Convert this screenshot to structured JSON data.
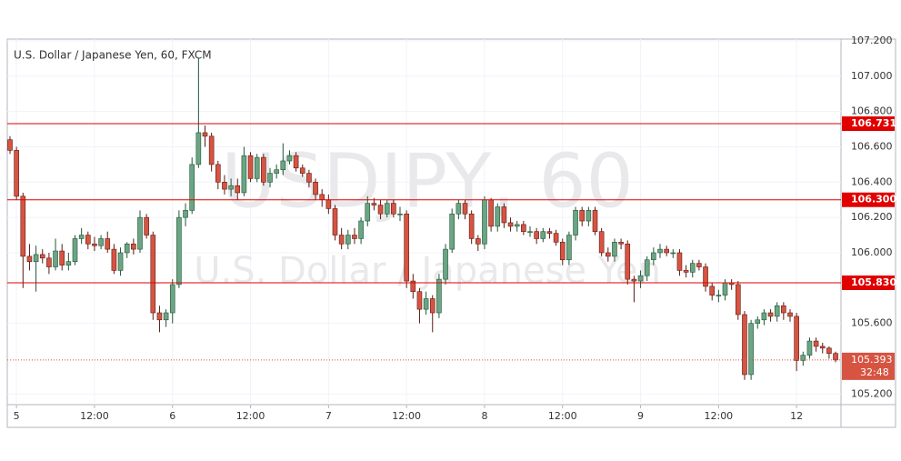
{
  "chart_data": {
    "type": "candlestick",
    "title": "U.S. Dollar / Japanese Yen, 60, FXCM",
    "watermark": [
      "USDJPY, 60",
      "U.S. Dollar / Japanese Yen"
    ],
    "categories": [
      null,
      "5",
      null,
      null,
      null,
      null,
      null,
      null,
      null,
      null,
      null,
      null,
      null,
      "12:00",
      null,
      null,
      null,
      null,
      null,
      null,
      null,
      null,
      null,
      null,
      null,
      "6",
      null,
      null,
      null,
      null,
      null,
      null,
      null,
      null,
      null,
      null,
      null,
      "12:00",
      null,
      null,
      null,
      null,
      null,
      null,
      null,
      null,
      null,
      null,
      null,
      "7",
      null,
      null,
      null,
      null,
      null,
      null,
      null,
      null,
      null,
      null,
      null,
      "12:00",
      null,
      null,
      null,
      null,
      null,
      null,
      null,
      null,
      null,
      null,
      null,
      "8",
      null,
      null,
      null,
      null,
      null,
      null,
      null,
      null,
      null,
      null,
      null,
      "12:00",
      null,
      null,
      null,
      null,
      null,
      null,
      null,
      null,
      null,
      null,
      null,
      "9",
      null,
      null,
      null,
      null,
      null,
      null,
      null,
      null,
      null,
      null,
      null,
      "12:00",
      null,
      null,
      null,
      null,
      null,
      null,
      null,
      null,
      null,
      null,
      null,
      "12",
      null,
      null,
      null,
      null,
      null,
      null
    ],
    "open": [
      106.64,
      106.58,
      106.32,
      105.98,
      105.95,
      105.99,
      105.97,
      105.92,
      106.01,
      105.93,
      105.95,
      106.08,
      106.1,
      106.05,
      106.04,
      106.08,
      106.02,
      105.9,
      106.0,
      106.05,
      106.02,
      106.2,
      106.1,
      105.66,
      105.62,
      105.66,
      105.82,
      106.2,
      106.24,
      106.5,
      106.68,
      106.66,
      106.5,
      106.4,
      106.36,
      106.38,
      106.34,
      106.55,
      106.42,
      106.54,
      106.4,
      106.45,
      106.47,
      106.52,
      106.55,
      106.48,
      106.45,
      106.4,
      106.33,
      106.3,
      106.25,
      106.1,
      106.05,
      106.1,
      106.08,
      106.18,
      106.28,
      106.27,
      106.22,
      106.28,
      106.22,
      106.22,
      105.84,
      105.78,
      105.68,
      105.74,
      105.66,
      105.85,
      106.02,
      106.22,
      106.28,
      106.22,
      106.08,
      106.05,
      106.3,
      106.15,
      106.26,
      106.17,
      106.15,
      106.16,
      106.12,
      106.12,
      106.08,
      106.12,
      106.11,
      106.06,
      105.96,
      106.1,
      106.24,
      106.18,
      106.24,
      106.12,
      106.0,
      105.98,
      106.06,
      106.05,
      105.85,
      105.84,
      105.87,
      105.96,
      106.0,
      106.02,
      106.0,
      106.0,
      105.9,
      105.89,
      105.94,
      105.92,
      105.81,
      105.76,
      105.76,
      105.83,
      105.82,
      105.65,
      105.31,
      105.6,
      105.62,
      105.66,
      105.64,
      105.7,
      105.66,
      105.64,
      105.39,
      105.42,
      105.5,
      105.47,
      105.46,
      105.43
    ],
    "high": [
      106.66,
      106.6,
      106.34,
      106.05,
      106.04,
      106.02,
      106.0,
      106.08,
      106.05,
      106.0,
      106.1,
      106.14,
      106.12,
      106.09,
      106.1,
      106.12,
      106.05,
      106.03,
      106.06,
      106.08,
      106.24,
      106.22,
      106.12,
      105.7,
      105.68,
      105.85,
      106.24,
      106.28,
      106.54,
      107.1,
      106.72,
      106.68,
      106.52,
      106.44,
      106.42,
      106.42,
      106.6,
      106.57,
      106.56,
      106.56,
      106.48,
      106.5,
      106.62,
      106.58,
      106.57,
      106.5,
      106.47,
      106.42,
      106.36,
      106.33,
      106.27,
      106.14,
      106.13,
      106.14,
      106.2,
      106.32,
      106.31,
      106.3,
      106.3,
      106.3,
      106.26,
      106.24,
      105.88,
      105.8,
      105.78,
      105.76,
      105.88,
      106.05,
      106.25,
      106.3,
      106.3,
      106.24,
      106.1,
      106.32,
      106.31,
      106.28,
      106.28,
      106.2,
      106.18,
      106.18,
      106.15,
      106.14,
      106.14,
      106.14,
      106.13,
      106.08,
      106.12,
      106.26,
      106.26,
      106.26,
      106.26,
      106.14,
      106.03,
      106.08,
      106.08,
      106.07,
      105.87,
      105.9,
      105.98,
      106.03,
      106.05,
      106.04,
      106.02,
      106.02,
      105.93,
      105.96,
      105.96,
      105.94,
      105.83,
      105.79,
      105.85,
      105.85,
      105.84,
      105.67,
      105.62,
      105.64,
      105.68,
      105.68,
      105.72,
      105.72,
      105.68,
      105.66,
      105.44,
      105.52,
      105.52,
      105.49,
      105.47,
      105.44
    ],
    "low": [
      106.56,
      106.3,
      105.8,
      105.9,
      105.78,
      105.94,
      105.88,
      105.9,
      105.9,
      105.9,
      105.93,
      106.05,
      106.02,
      106.01,
      106.02,
      106.0,
      105.88,
      105.87,
      105.97,
      105.99,
      106.0,
      106.08,
      105.62,
      105.55,
      105.58,
      105.6,
      105.8,
      106.15,
      106.22,
      106.48,
      106.6,
      106.46,
      106.36,
      106.33,
      106.32,
      106.3,
      106.32,
      106.4,
      106.4,
      106.38,
      106.37,
      106.42,
      106.44,
      106.5,
      106.46,
      106.43,
      106.37,
      106.3,
      106.26,
      106.22,
      106.07,
      106.02,
      106.02,
      106.05,
      106.05,
      106.15,
      106.24,
      106.19,
      106.2,
      106.2,
      106.18,
      105.8,
      105.74,
      105.6,
      105.65,
      105.55,
      105.63,
      105.82,
      106.0,
      106.19,
      106.19,
      106.05,
      106.01,
      106.02,
      106.12,
      106.12,
      106.14,
      106.12,
      106.12,
      106.1,
      106.09,
      106.05,
      106.06,
      106.08,
      106.04,
      105.93,
      105.93,
      106.07,
      106.15,
      106.15,
      106.1,
      105.98,
      105.95,
      105.95,
      106.02,
      105.82,
      105.72,
      105.8,
      105.84,
      105.93,
      105.97,
      105.98,
      105.97,
      105.87,
      105.86,
      105.86,
      105.9,
      105.78,
      105.73,
      105.72,
      105.73,
      105.79,
      105.62,
      105.28,
      105.28,
      105.57,
      105.59,
      105.61,
      105.61,
      105.62,
      105.61,
      105.33,
      105.36,
      105.4,
      105.44,
      105.43,
      105.4,
      105.38
    ],
    "close": [
      106.58,
      106.32,
      105.98,
      105.95,
      105.99,
      105.97,
      105.92,
      106.01,
      105.93,
      105.95,
      106.08,
      106.1,
      106.05,
      106.04,
      106.08,
      106.02,
      105.9,
      106.0,
      106.05,
      106.02,
      106.2,
      106.1,
      105.66,
      105.62,
      105.66,
      105.82,
      106.2,
      106.24,
      106.5,
      106.68,
      106.66,
      106.5,
      106.4,
      106.36,
      106.38,
      106.34,
      106.55,
      106.42,
      106.54,
      106.4,
      106.45,
      106.47,
      106.52,
      106.55,
      106.48,
      106.45,
      106.4,
      106.33,
      106.3,
      106.25,
      106.1,
      106.05,
      106.1,
      106.08,
      106.18,
      106.28,
      106.27,
      106.22,
      106.28,
      106.22,
      106.22,
      105.84,
      105.78,
      105.68,
      105.74,
      105.66,
      105.85,
      106.02,
      106.22,
      106.28,
      106.22,
      106.08,
      106.05,
      106.3,
      106.15,
      106.26,
      106.17,
      106.15,
      106.16,
      106.12,
      106.12,
      106.08,
      106.12,
      106.11,
      106.06,
      105.96,
      106.1,
      106.24,
      106.18,
      106.24,
      106.12,
      106.0,
      105.98,
      106.06,
      106.05,
      105.85,
      105.84,
      105.87,
      105.96,
      106.0,
      106.02,
      106.0,
      106.0,
      105.9,
      105.89,
      105.94,
      105.92,
      105.81,
      105.76,
      105.76,
      105.83,
      105.82,
      105.65,
      105.31,
      105.6,
      105.62,
      105.66,
      105.64,
      105.7,
      105.66,
      105.64,
      105.39,
      105.42,
      105.5,
      105.47,
      105.46,
      105.43,
      105.393
    ],
    "up_color": "#6ba583",
    "down_color": "#d75442",
    "ylim": [
      105.14,
      107.21
    ],
    "yticks": [
      {
        "value": 105.2,
        "label": "105.200"
      },
      {
        "value": 105.6,
        "label": "105.600"
      },
      {
        "value": 106,
        "label": "106.000"
      },
      {
        "value": 106.2,
        "label": "106.200"
      },
      {
        "value": 106.4,
        "label": "106.400"
      },
      {
        "value": 106.6,
        "label": "106.600"
      },
      {
        "value": 106.8,
        "label": "106.800"
      },
      {
        "value": 107,
        "label": "107.000"
      },
      {
        "value": 107.2,
        "label": "107.200"
      }
    ],
    "grid": true,
    "levels": [
      {
        "value": 106.731,
        "label": "106.731"
      },
      {
        "value": 106.3,
        "label": "106.300"
      },
      {
        "value": 105.83,
        "label": "105.830"
      }
    ],
    "level_color": "#e00000",
    "countdown": "32:48"
  }
}
